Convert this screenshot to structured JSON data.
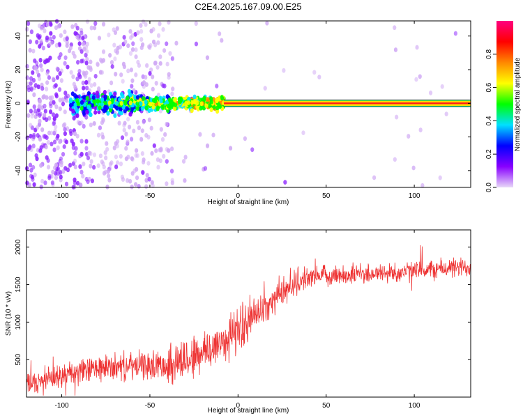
{
  "title": "C2E4.2025.167.09.00.E25",
  "chart_data": [
    {
      "type": "heatmap",
      "xlabel": "Height of straight line (km)",
      "ylabel": "Frequency (Hz)",
      "xlim": [
        -120,
        132
      ],
      "ylim": [
        -50,
        49
      ],
      "xticks": [
        -100,
        -50,
        0,
        50,
        100
      ],
      "yticks": [
        -40,
        -20,
        0,
        20,
        40
      ],
      "colorbar": {
        "label": "Normalized spectral amplitude",
        "range": [
          0.0,
          1.0
        ],
        "ticks": [
          "0.0",
          "0.2",
          "0.4",
          "0.6",
          "0.8"
        ],
        "colormap": [
          "#e8d8f8",
          "#8800ff",
          "#0000ff",
          "#00e0ff",
          "#00ff00",
          "#ffff00",
          "#ff8800",
          "#ff0000",
          "#ff0080"
        ]
      },
      "features": {
        "signal_band_hz": [
          -2,
          2
        ],
        "strong_line_start_km": -8,
        "broad_scatter_until_km": -37,
        "dense_scatter_until_km": -85
      },
      "grid": false
    },
    {
      "type": "line",
      "xlabel": "Height of straight line (km)",
      "ylabel": "SNR (10 * v/v)",
      "xlim": [
        -120,
        132
      ],
      "ylim": [
        0,
        2230
      ],
      "xticks": [
        -100,
        -50,
        0,
        50,
        100
      ],
      "yticks": [
        500,
        1000,
        1500,
        2000
      ],
      "color": "#ee3333",
      "series": [
        {
          "x": [
            -120,
            -110,
            -100,
            -90,
            -80,
            -70,
            -60,
            -50,
            -40,
            -30,
            -20,
            -10,
            0,
            10,
            20,
            30,
            40,
            50,
            60,
            70,
            80,
            90,
            100,
            110,
            120,
            132
          ],
          "y": [
            180,
            220,
            280,
            330,
            380,
            400,
            410,
            420,
            440,
            500,
            580,
            720,
            900,
            1100,
            1300,
            1500,
            1600,
            1620,
            1630,
            1640,
            1650,
            1660,
            1680,
            1700,
            1720,
            1730
          ]
        }
      ],
      "grid": false
    }
  ]
}
